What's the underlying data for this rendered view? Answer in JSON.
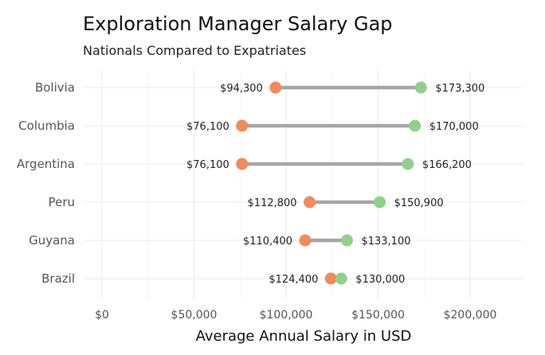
{
  "chart_data": {
    "type": "dumbbell",
    "title": "Exploration Manager Salary Gap",
    "subtitle": "Nationals Compared to Expatriates",
    "xlabel": "Average Annual Salary in USD",
    "xlim": [
      0,
      220000
    ],
    "x_ticks": [
      0,
      50000,
      100000,
      150000,
      200000
    ],
    "x_tick_labels": [
      "$0",
      "$50,000",
      "$100,000",
      "$150,000",
      "$200,000"
    ],
    "grid": true,
    "colors": {
      "low": "#f4895a",
      "high": "#8fd18a",
      "segment": "#a6a6a6"
    },
    "rows": [
      {
        "category": "Bolivia",
        "low": 94300,
        "high": 173300,
        "low_label": "$94,300",
        "high_label": "$173,300"
      },
      {
        "category": "Columbia",
        "low": 76100,
        "high": 170000,
        "low_label": "$76,100",
        "high_label": "$170,000"
      },
      {
        "category": "Argentina",
        "low": 76100,
        "high": 166200,
        "low_label": "$76,100",
        "high_label": "$166,200"
      },
      {
        "category": "Peru",
        "low": 112800,
        "high": 150900,
        "low_label": "$112,800",
        "high_label": "$150,900"
      },
      {
        "category": "Guyana",
        "low": 110400,
        "high": 133100,
        "low_label": "$110,400",
        "high_label": "$133,100"
      },
      {
        "category": "Brazil",
        "low": 124400,
        "high": 130000,
        "low_label": "$124,400",
        "high_label": "$130,000"
      }
    ]
  }
}
